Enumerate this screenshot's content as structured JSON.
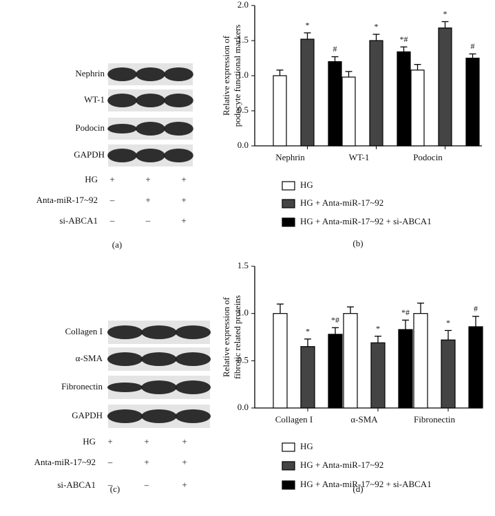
{
  "blots": [
    {
      "label": "(a)",
      "rows": [
        "Nephrin",
        "WT-1",
        "Podocin",
        "GAPDH"
      ],
      "treatments": [
        {
          "name": "HG",
          "marks": [
            "+",
            "+",
            "+"
          ]
        },
        {
          "name": "Anta-miR-17~92",
          "marks": [
            "–",
            "+",
            "+"
          ]
        },
        {
          "name": "si-ABCA1",
          "marks": [
            "–",
            "–",
            "+"
          ]
        }
      ]
    },
    {
      "label": "(c)",
      "rows": [
        "Collagen I",
        "α-SMA",
        "Fibronectin",
        "GAPDH"
      ],
      "treatments": [
        {
          "name": "HG",
          "marks": [
            "+",
            "+",
            "+"
          ]
        },
        {
          "name": "Anta-miR-17~92",
          "marks": [
            "–",
            "+",
            "+"
          ]
        },
        {
          "name": "si-ABCA1",
          "marks": [
            "–",
            "–",
            "+"
          ]
        }
      ]
    }
  ],
  "chart_data": [
    {
      "type": "bar",
      "panel_label": "(b)",
      "ylabel": [
        "Relative expression of",
        "podocyte functional markers"
      ],
      "categories": [
        "Nephrin",
        "WT-1",
        "Podocin"
      ],
      "series": [
        {
          "name": "HG",
          "color": "#ffffff",
          "values": [
            1.0,
            0.98,
            1.08
          ],
          "errors": [
            0.08,
            0.08,
            0.08
          ],
          "annotations": [
            null,
            null,
            null
          ]
        },
        {
          "name": "HG + Anta-miR-17~92",
          "color": "#444444",
          "values": [
            1.52,
            1.5,
            1.68
          ],
          "errors": [
            0.09,
            0.09,
            0.09
          ],
          "annotations": [
            "*",
            "*",
            "*"
          ]
        },
        {
          "name": "HG + Anta-miR-17~92 + si-ABCA1",
          "color": "#000000",
          "values": [
            1.2,
            1.34,
            1.25
          ],
          "errors": [
            0.07,
            0.07,
            0.06
          ],
          "annotations": [
            "#",
            "*#",
            "#"
          ]
        }
      ],
      "ylim": [
        0,
        2.0
      ],
      "yticks": [
        {
          "value": 0,
          "label": "0.0"
        },
        {
          "value": 0.5,
          "label": "0.5"
        },
        {
          "value": 1.0,
          "label": "1.0"
        },
        {
          "value": 1.5,
          "label": "1.5"
        },
        {
          "value": 2.0,
          "label": "2.0"
        }
      ]
    },
    {
      "type": "bar",
      "panel_label": "(d)",
      "ylabel": [
        "Relative expression of",
        "fibrotic related proteins"
      ],
      "categories": [
        "Collagen I",
        "α-SMA",
        "Fibronectin"
      ],
      "series": [
        {
          "name": "HG",
          "color": "#ffffff",
          "values": [
            1.0,
            1.0,
            1.0
          ],
          "errors": [
            0.1,
            0.07,
            0.11
          ],
          "annotations": [
            null,
            null,
            null
          ]
        },
        {
          "name": "HG + Anta-miR-17~92",
          "color": "#444444",
          "values": [
            0.65,
            0.69,
            0.72
          ],
          "errors": [
            0.08,
            0.07,
            0.1
          ],
          "annotations": [
            "*",
            "*",
            "*"
          ]
        },
        {
          "name": "HG + Anta-miR-17~92 + si-ABCA1",
          "color": "#000000",
          "values": [
            0.78,
            0.83,
            0.86
          ],
          "errors": [
            0.07,
            0.1,
            0.11
          ],
          "annotations": [
            "*#",
            "*#",
            "#"
          ]
        }
      ],
      "ylim": [
        0,
        1.5
      ],
      "yticks": [
        {
          "value": 0,
          "label": "0.0"
        },
        {
          "value": 0.5,
          "label": "0.5"
        },
        {
          "value": 1.0,
          "label": "1.0"
        },
        {
          "value": 1.5,
          "label": "1.5"
        }
      ]
    }
  ]
}
